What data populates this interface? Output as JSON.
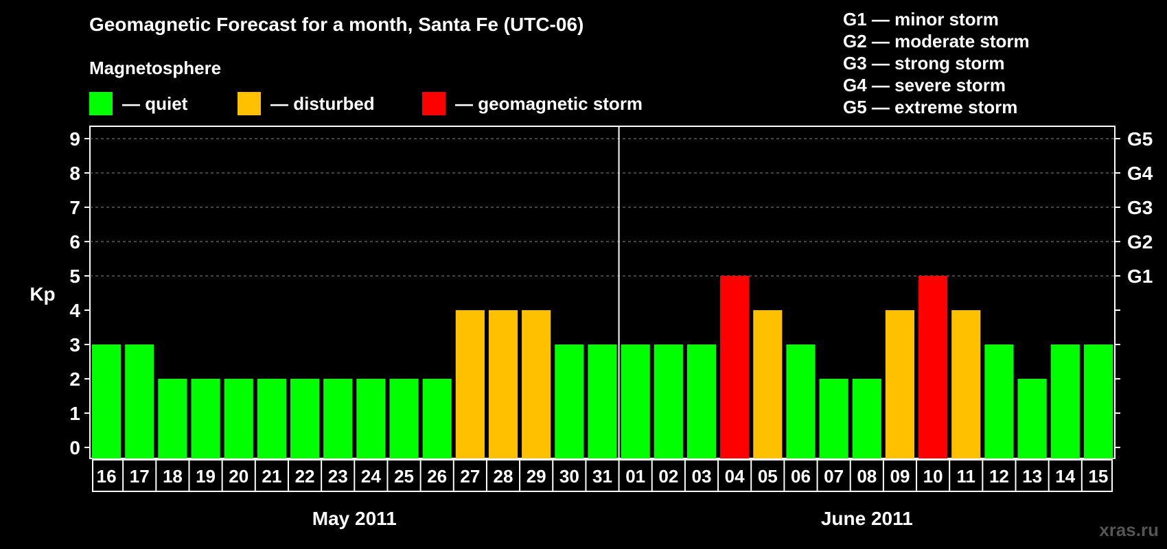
{
  "title": "Geomagnetic Forecast for a month, Santa Fe (UTC-06)",
  "subtitle": "Magnetosphere",
  "legend": [
    {
      "color": "#00ff00",
      "label": "— quiet"
    },
    {
      "color": "#ffc000",
      "label": "— disturbed"
    },
    {
      "color": "#ff0000",
      "label": "— geomagnetic storm"
    }
  ],
  "g_scale": [
    "G1 — minor storm",
    "G2 — moderate storm",
    "G3 — strong storm",
    "G4 — severe storm",
    "G5 — extreme storm"
  ],
  "watermark": "xras.ru",
  "chart_data": {
    "type": "bar",
    "ylabel": "Kp",
    "ylim": [
      0,
      9
    ],
    "yticks": [
      0,
      1,
      2,
      3,
      4,
      5,
      6,
      7,
      8,
      9
    ],
    "right_axis_labels": [
      {
        "kp": 5,
        "label": "G1"
      },
      {
        "kp": 6,
        "label": "G2"
      },
      {
        "kp": 7,
        "label": "G3"
      },
      {
        "kp": 8,
        "label": "G4"
      },
      {
        "kp": 9,
        "label": "G5"
      }
    ],
    "grid": "dashed horizontal at Kp 5–9",
    "categories": [
      "16",
      "17",
      "18",
      "19",
      "20",
      "21",
      "22",
      "23",
      "24",
      "25",
      "26",
      "27",
      "28",
      "29",
      "30",
      "31",
      "01",
      "02",
      "03",
      "04",
      "05",
      "06",
      "07",
      "08",
      "09",
      "10",
      "11",
      "12",
      "13",
      "14",
      "15"
    ],
    "values": [
      3,
      3,
      2,
      2,
      2,
      2,
      2,
      2,
      2,
      2,
      2,
      4,
      4,
      4,
      3,
      3,
      3,
      3,
      3,
      5,
      4,
      3,
      2,
      2,
      4,
      5,
      4,
      3,
      2,
      3,
      3
    ],
    "month_groups": [
      {
        "label": "May 2011",
        "count": 16
      },
      {
        "label": "June 2011",
        "count": 15
      }
    ],
    "colors": {
      "quiet": "#00ff00",
      "disturbed": "#ffc000",
      "storm": "#ff0000"
    }
  }
}
